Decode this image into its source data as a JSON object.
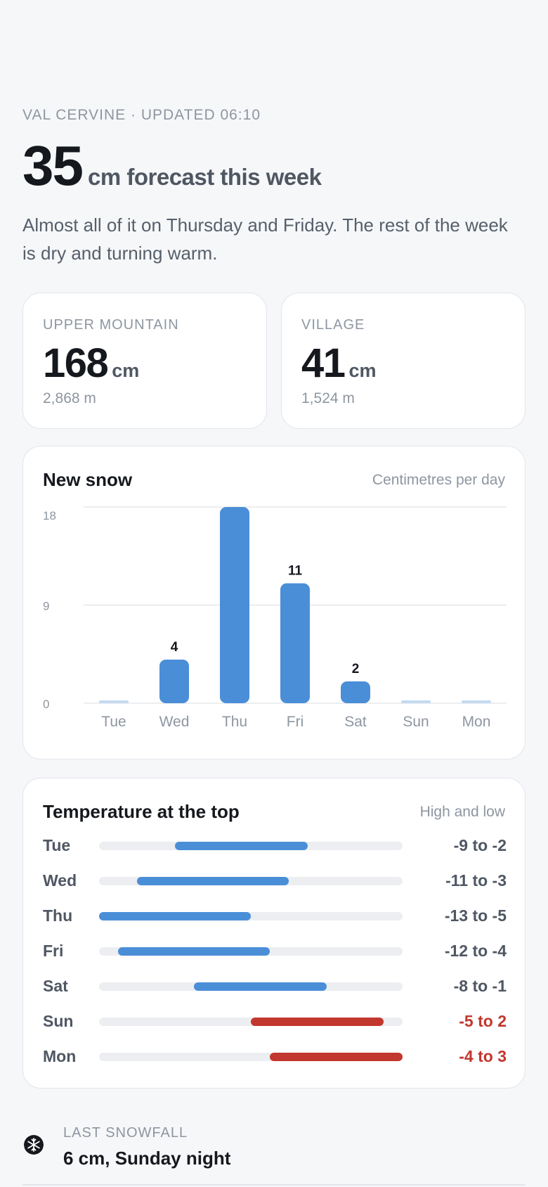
{
  "header": {
    "eyebrow": "VAL CERVINE · UPDATED 06:10",
    "total": "35",
    "total_suffix": "cm forecast this week",
    "summary": "Almost all of it on Thursday and Friday. The rest of the week is dry and turning warm."
  },
  "stats": [
    {
      "label": "UPPER MOUNTAIN",
      "value": "168",
      "unit": "cm",
      "elevation": "2,868 m"
    },
    {
      "label": "VILLAGE",
      "value": "41",
      "unit": "cm",
      "elevation": "1,524 m"
    }
  ],
  "chart_data": {
    "type": "bar",
    "title": "New snow",
    "subtitle": "Centimetres per day",
    "categories": [
      "Tue",
      "Wed",
      "Thu",
      "Fri",
      "Sat",
      "Sun",
      "Mon"
    ],
    "values": [
      0,
      4,
      18,
      11,
      2,
      0,
      0
    ],
    "data_labels": [
      "",
      "4",
      "",
      "11",
      "2",
      "",
      ""
    ],
    "yticks": [
      "0",
      "9",
      "18"
    ],
    "ylim": [
      0,
      18
    ],
    "grid": true,
    "bar_color": "#4a8ed8",
    "zero_bar_color": "#c5daf1"
  },
  "temperature": {
    "title": "Temperature at the top",
    "subtitle": "High and low",
    "scale_min": -13,
    "scale_max": 3,
    "rows": [
      {
        "day": "Tue",
        "low": -9,
        "high": -2,
        "label": "-9 to -2",
        "warm": false
      },
      {
        "day": "Wed",
        "low": -11,
        "high": -3,
        "label": "-11 to -3",
        "warm": false
      },
      {
        "day": "Thu",
        "low": -13,
        "high": -5,
        "label": "-13 to -5",
        "warm": false
      },
      {
        "day": "Fri",
        "low": -12,
        "high": -4,
        "label": "-12 to -4",
        "warm": false
      },
      {
        "day": "Sat",
        "low": -8,
        "high": -1,
        "label": "-8 to -1",
        "warm": false
      },
      {
        "day": "Sun",
        "low": -5,
        "high": 2,
        "label": "-5 to 2",
        "warm": true
      },
      {
        "day": "Mon",
        "low": -4,
        "high": 3,
        "label": "-4 to 3",
        "warm": true
      }
    ],
    "cold_color": "#4a8ed8",
    "warm_color": "#c2372e",
    "default_text_color": "#4f5763"
  },
  "last_snowfall": {
    "icon": "snowflake-icon",
    "label": "LAST SNOWFALL",
    "value": "6 cm, Sunday night"
  }
}
